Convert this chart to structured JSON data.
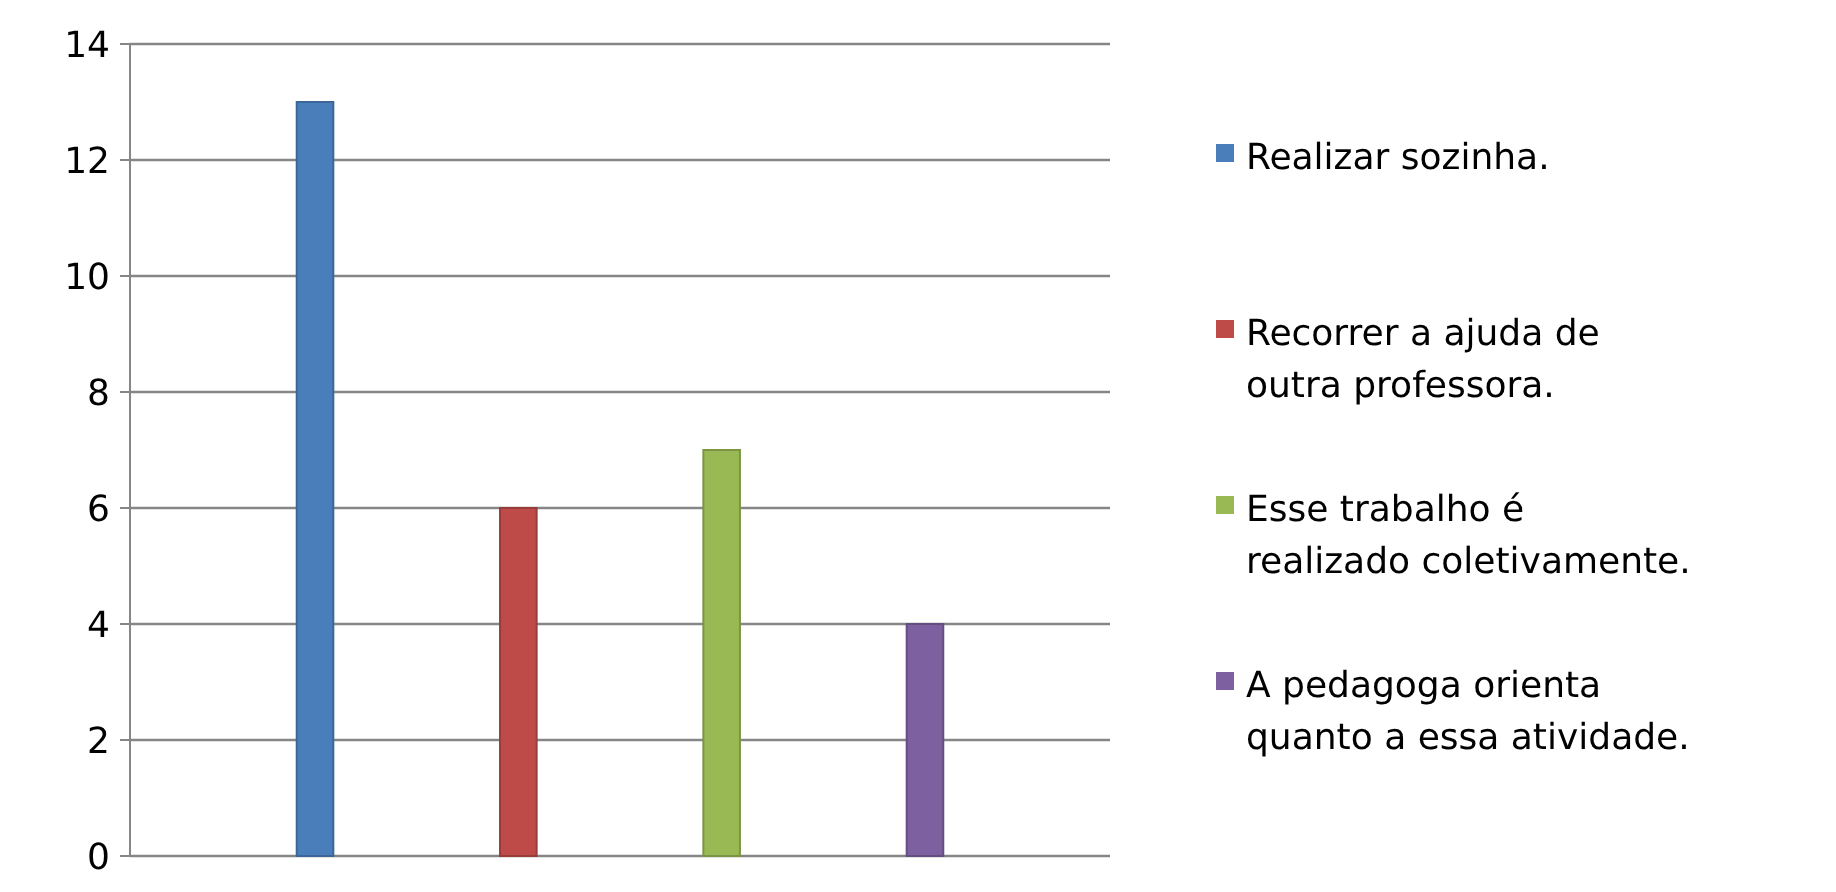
{
  "chart_data": {
    "type": "bar",
    "categories": [
      null,
      null,
      null,
      null
    ],
    "series": [
      {
        "name": "Realizar sozinha.",
        "color": "#4a7ebb",
        "values": [
          13,
          null,
          null,
          null
        ]
      },
      {
        "name": "Recorrer a ajuda de outra professora.",
        "color": "#be4b48",
        "values": [
          null,
          6,
          null,
          null
        ]
      },
      {
        "name": "Esse trabalho é realizado coletivamente.",
        "color": "#98b954",
        "values": [
          null,
          null,
          7,
          null
        ]
      },
      {
        "name": "A pedagoga orienta quanto a essa atividade.",
        "color": "#7d60a0",
        "values": [
          null,
          null,
          null,
          4
        ]
      }
    ],
    "ylim": [
      0,
      14
    ],
    "yticks": [
      0,
      2,
      4,
      6,
      8,
      10,
      12,
      14
    ],
    "grid": "y",
    "legend": "right"
  }
}
